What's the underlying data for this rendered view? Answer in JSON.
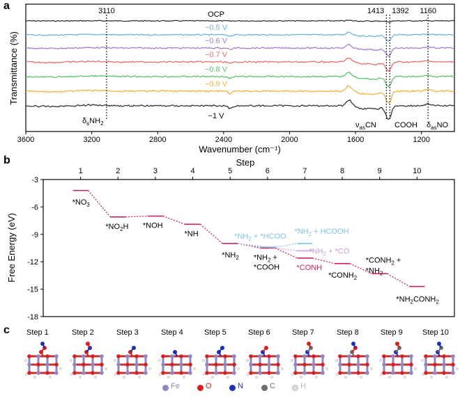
{
  "panels": {
    "a": "a",
    "b": "b",
    "c": "c"
  },
  "chart_data": [
    {
      "type": "line",
      "panel": "a",
      "xlabel": "Wavenumber (cm⁻¹)",
      "ylabel": "Transmittance (%)",
      "xlim": [
        3600,
        1000
      ],
      "x_reversed": true,
      "x_ticks": [
        "3600",
        "3200",
        "2800",
        "2400",
        "2000",
        "1600",
        "1200"
      ],
      "series": [
        {
          "name": "OCP",
          "color": "#333333"
        },
        {
          "name": "−0.5 V",
          "color": "#6fb1e0"
        },
        {
          "name": "−0.6 V",
          "color": "#a57fcb"
        },
        {
          "name": "−0.7 V",
          "color": "#e86c6c"
        },
        {
          "name": "−0.8 V",
          "color": "#5bc46a"
        },
        {
          "name": "−0.9 V",
          "color": "#f2b13a"
        },
        {
          "name": "−1 V",
          "color": "#333333"
        }
      ],
      "band_markers": [
        {
          "label": "3110",
          "x": 3110
        },
        {
          "label": "1413",
          "x": 1413
        },
        {
          "label": "1392",
          "x": 1392
        },
        {
          "label": "1160",
          "x": 1160
        }
      ],
      "assignments": [
        "δsNH2",
        "νasCN",
        "COOH",
        "δasNO"
      ]
    },
    {
      "type": "line",
      "panel": "b",
      "xlabel": "Step",
      "ylabel": "Free Energy (eV)",
      "xlim": [
        0,
        11
      ],
      "ylim": [
        -18,
        -3
      ],
      "x_ticks": [
        "1",
        "2",
        "3",
        "4",
        "5",
        "6",
        "7",
        "8",
        "9",
        "10"
      ],
      "y_ticks": [
        "-3",
        "-6",
        "-9",
        "-12",
        "-15",
        "-18"
      ],
      "main_path": [
        {
          "step": 1,
          "y": -4.2,
          "label": "*NO3"
        },
        {
          "step": 2,
          "y": -7.1,
          "label": "*NO2H"
        },
        {
          "step": 3,
          "y": -7.0,
          "label": "*NOH"
        },
        {
          "step": 4,
          "y": -7.9,
          "label": "*NH"
        },
        {
          "step": 5,
          "y": -10.0,
          "label": "*NH2"
        },
        {
          "step": 6,
          "y": -10.5,
          "label": "*NH2 + *COOH"
        },
        {
          "step": 7,
          "y": -11.6,
          "label": "*CONH"
        },
        {
          "step": 8,
          "y": -12.2,
          "label": "*CONH2"
        },
        {
          "step": 9,
          "y": -13.3,
          "label": "*CONH2 + *NH2"
        },
        {
          "step": 10,
          "y": -14.7,
          "label": "*NH2CONH2"
        }
      ],
      "side_paths": [
        {
          "color": "#7ec3e8",
          "points": [
            {
              "step": 6,
              "y": -10.4,
              "label": "*NH2 + *HCOO"
            },
            {
              "step": 7,
              "y": -10.0,
              "label": "*NH2 + HCOOH"
            }
          ]
        },
        {
          "color": "#c89cd8",
          "points": [
            {
              "step": 7,
              "y": -10.8,
              "label": "*NH2 + *CO"
            }
          ]
        }
      ],
      "main_color": "#c9245e",
      "highlight_label": "*CONH"
    }
  ],
  "panel_c": {
    "steps": [
      "Step 1",
      "Step 2",
      "Step 3",
      "Step 4",
      "Step 5",
      "Step 6",
      "Step 7",
      "Step 8",
      "Step 9",
      "Step 10"
    ],
    "legend": [
      {
        "label": "Fe",
        "color": "#8f86c4"
      },
      {
        "label": "O",
        "color": "#d62020"
      },
      {
        "label": "N",
        "color": "#1c2fb8"
      },
      {
        "label": "C",
        "color": "#6e6e6e"
      },
      {
        "label": "H",
        "color": "#dddddd"
      }
    ]
  }
}
